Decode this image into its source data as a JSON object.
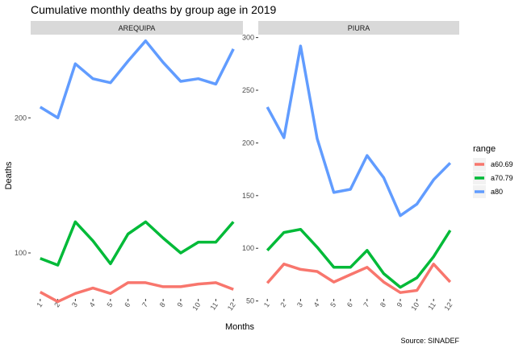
{
  "chart_data": {
    "type": "line",
    "title": "Cumulative monthly deaths by group age in 2019",
    "xlabel": "Months",
    "ylabel": "Deaths",
    "caption": "Source: SINADEF",
    "legend": {
      "title": "range",
      "position": "right",
      "entries": [
        {
          "label": "a60.69",
          "color": "#F8766D"
        },
        {
          "label": "a70.79",
          "color": "#00BA38"
        },
        {
          "label": "a80",
          "color": "#619CFF"
        }
      ]
    },
    "x": [
      "1",
      "2",
      "3",
      "4",
      "5",
      "6",
      "7",
      "8",
      "9",
      "10",
      "11",
      "12"
    ],
    "grid": false,
    "facets": [
      {
        "name": "AREQUIPA",
        "ylim": [
          66,
          261
        ],
        "yticks": [
          100,
          200
        ],
        "series": [
          {
            "name": "a60.69",
            "values": [
              71,
              64,
              70,
              74,
              70,
              78,
              78,
              75,
              75,
              77,
              78,
              73
            ]
          },
          {
            "name": "a70.79",
            "values": [
              96,
              91,
              123,
              109,
              92,
              114,
              123,
              111,
              100,
              108,
              108,
              123
            ]
          },
          {
            "name": "a80",
            "values": [
              208,
              200,
              240,
              229,
              226,
              242,
              257,
              241,
              227,
              229,
              225,
              251
            ]
          }
        ]
      },
      {
        "name": "PIURA",
        "ylim": [
          52,
          302
        ],
        "yticks": [
          50,
          100,
          150,
          200,
          250,
          300
        ],
        "series": [
          {
            "name": "a60.69",
            "values": [
              67,
              85,
              80,
              78,
              68,
              75,
              82,
              68,
              58,
              60,
              85,
              68
            ]
          },
          {
            "name": "a70.79",
            "values": [
              98,
              115,
              118,
              101,
              82,
              82,
              98,
              76,
              63,
              72,
              92,
              117
            ]
          },
          {
            "name": "a80",
            "values": [
              234,
              205,
              292,
              204,
              153,
              156,
              188,
              167,
              131,
              142,
              165,
              181
            ]
          }
        ]
      }
    ]
  }
}
